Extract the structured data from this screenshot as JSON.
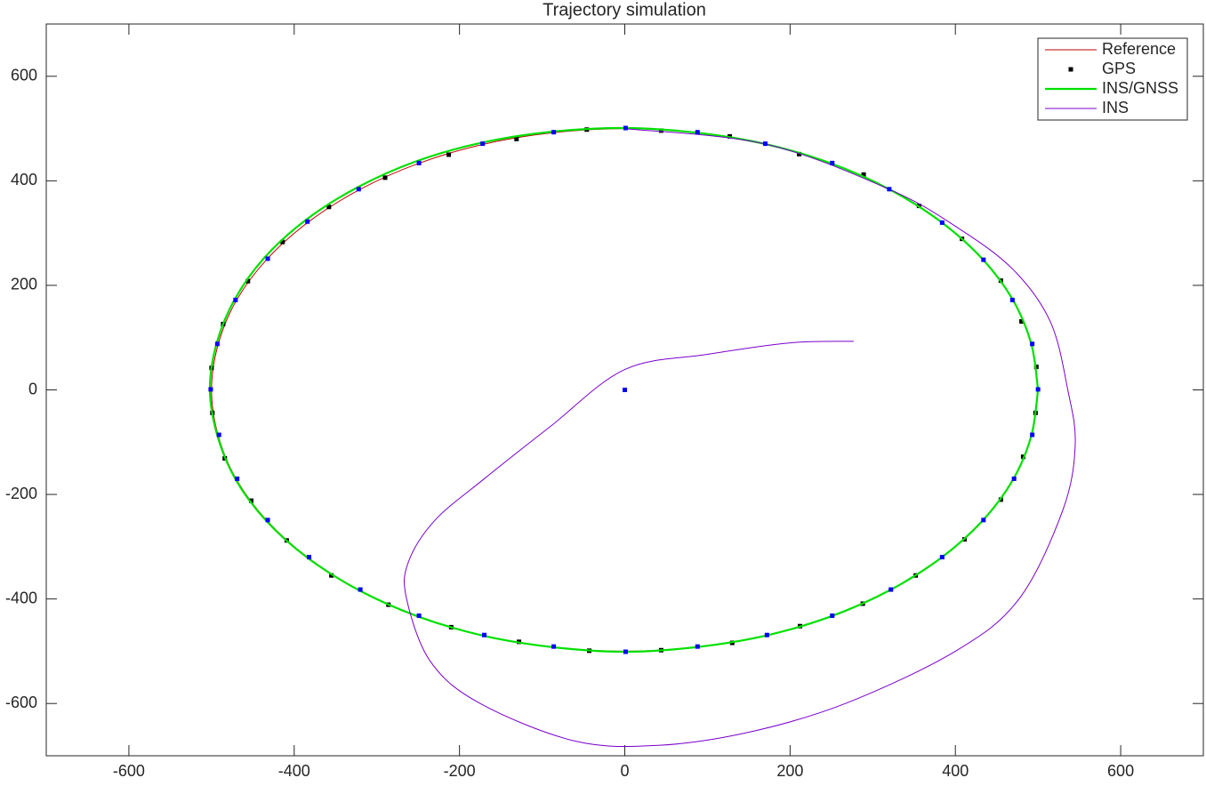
{
  "chart_data": {
    "type": "line",
    "title": "Trajectory simulation",
    "xlim": [
      -700,
      700
    ],
    "ylim": [
      -700,
      700
    ],
    "xticks": [
      -600,
      -400,
      -200,
      0,
      200,
      400,
      600
    ],
    "yticks": [
      -600,
      -400,
      -200,
      0,
      200,
      400,
      600
    ],
    "legend": "northeast",
    "series": [
      {
        "name": "Reference",
        "color": "#c00000",
        "mode": "line",
        "width": 1,
        "x": [
          500,
          492,
          470,
          433,
          383,
          321,
          250,
          171,
          87,
          0,
          -87,
          -171,
          -250,
          -321,
          -383,
          -433,
          -470,
          -492,
          -500,
          -492,
          -470,
          -433,
          -383,
          -321,
          -250,
          -171,
          -87,
          0,
          87,
          171,
          250,
          321,
          383,
          433,
          470,
          492,
          500
        ],
        "values": [
          0,
          87,
          171,
          250,
          321,
          383,
          433,
          470,
          492,
          500,
          492,
          470,
          433,
          383,
          321,
          250,
          171,
          87,
          0,
          -87,
          -171,
          -250,
          -321,
          -383,
          -433,
          -470,
          -492,
          -500,
          -492,
          -470,
          -433,
          -383,
          -321,
          -250,
          -171,
          -87,
          0
        ]
      },
      {
        "name": "GPS",
        "color": "#000000",
        "mode": "markers",
        "x": [
          498,
          480,
          455,
          408,
          356,
          289,
          211,
          127,
          44,
          -46,
          -131,
          -213,
          -290,
          -358,
          -414,
          -456,
          -486,
          -500,
          -499,
          -484,
          -452,
          -409,
          -355,
          -286,
          -210,
          -128,
          -43,
          44,
          130,
          212,
          288,
          352,
          411,
          455,
          482,
          497
        ],
        "values": [
          44,
          131,
          209,
          289,
          352,
          412,
          451,
          485,
          496,
          498,
          480,
          450,
          406,
          350,
          283,
          208,
          126,
          42,
          -44,
          -131,
          -212,
          -288,
          -355,
          -411,
          -454,
          -482,
          -499,
          -498,
          -484,
          -452,
          -409,
          -355,
          -286,
          -210,
          -128,
          -44
        ]
      },
      {
        "name": "INS/GNSS",
        "color": "#00e000",
        "mode": "line",
        "width": 2.2,
        "x": [
          500,
          492,
          470,
          433,
          383,
          321,
          250,
          171,
          87,
          0,
          -88,
          -173,
          -253,
          -324,
          -386,
          -436,
          -472,
          -494,
          -502,
          -493,
          -471,
          -434,
          -384,
          -322,
          -251,
          -172,
          -88,
          0,
          87,
          171,
          250,
          321,
          383,
          433,
          470,
          492,
          500
        ],
        "values": [
          0,
          87,
          171,
          250,
          321,
          383,
          433,
          470,
          492,
          501,
          494,
          473,
          437,
          387,
          325,
          253,
          173,
          88,
          0,
          -87,
          -171,
          -250,
          -321,
          -383,
          -433,
          -470,
          -492,
          -501,
          -492,
          -470,
          -433,
          -383,
          -321,
          -250,
          -171,
          -87,
          0
        ]
      },
      {
        "name": "INS",
        "color": "#7a00cc",
        "mode": "line",
        "width": 1,
        "x": [
          0,
          171,
          321,
          402,
          470,
          515,
          536,
          545,
          530,
          477,
          400,
          267,
          150,
          41,
          -60,
          -175,
          -235,
          -264,
          -262,
          -230,
          -170,
          -90,
          0,
          100,
          200,
          277
        ],
        "values": [
          500,
          470,
          383,
          311,
          230,
          130,
          0,
          -105,
          -230,
          -400,
          -500,
          -600,
          -655,
          -680,
          -672,
          -600,
          -520,
          -400,
          -330,
          -250,
          -170,
          -70,
          39,
          68,
          90,
          93
        ]
      },
      {
        "color": "#0000ff",
        "mode": "markers",
        "x": [
          500,
          493,
          469,
          434,
          384,
          320,
          251,
          170,
          88,
          1,
          -86,
          -172,
          -249,
          -322,
          -384,
          -432,
          -471,
          -493,
          -501,
          -491,
          -469,
          -432,
          -382,
          -320,
          -249,
          -170,
          -86,
          1,
          88,
          172,
          251,
          322,
          384,
          434,
          471,
          493,
          0
        ],
        "values": [
          1,
          88,
          172,
          249,
          320,
          384,
          434,
          471,
          493,
          501,
          493,
          471,
          434,
          384,
          322,
          251,
          172,
          88,
          1,
          -86,
          -170,
          -249,
          -320,
          -382,
          -432,
          -469,
          -491,
          -501,
          -491,
          -469,
          -432,
          -382,
          -320,
          -249,
          -170,
          -86,
          0
        ]
      }
    ]
  }
}
